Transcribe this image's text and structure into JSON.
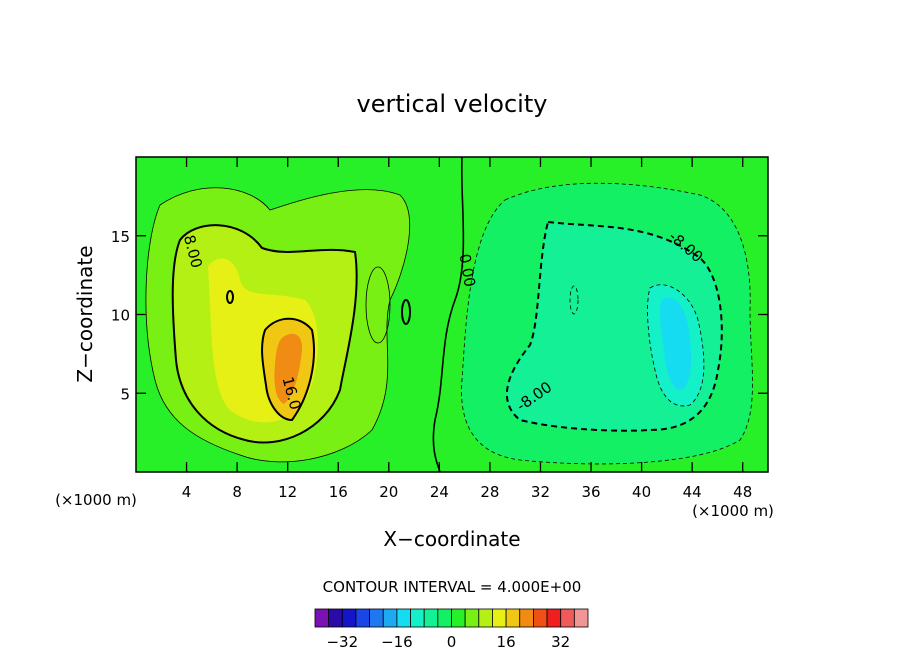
{
  "chart_data": {
    "type": "contour",
    "title": "vertical velocity",
    "xlabel": "X−coordinate",
    "ylabel": "Z−coordinate",
    "x_unit_label": "(×1000 m)",
    "z_unit_label": "(×1000 m)",
    "xlim": [
      0,
      50
    ],
    "ylim": [
      0,
      20
    ],
    "x_ticks": [
      "4",
      "8",
      "12",
      "16",
      "20",
      "24",
      "28",
      "32",
      "36",
      "40",
      "44",
      "48"
    ],
    "y_ticks": [
      "5",
      "10",
      "15"
    ],
    "contour_interval_text": "CONTOUR INTERVAL = 4.000E+00",
    "contour_labels": [
      {
        "text": "8.00",
        "x": 4.5,
        "z": 14.0
      },
      {
        "text": "16.0",
        "x": 12.3,
        "z": 5.0
      },
      {
        "text": "0.00",
        "x": 26.2,
        "z": 12.8
      },
      {
        "text": "-8.00",
        "x": 43.5,
        "z": 14.3
      },
      {
        "text": "-8.00",
        "x": 31.5,
        "z": 4.8
      }
    ],
    "colorbar": {
      "levels": [
        -40,
        -36,
        -32,
        -28,
        -24,
        -20,
        -16,
        -12,
        -8,
        -4,
        0,
        4,
        8,
        12,
        16,
        20,
        24,
        28,
        32,
        36,
        40
      ],
      "colors": [
        "#7a11b4",
        "#2a0aa8",
        "#1414c8",
        "#1a46e6",
        "#1e78f0",
        "#1eaaf0",
        "#15dcf0",
        "#14f0c8",
        "#14f096",
        "#14f064",
        "#28f028",
        "#78f014",
        "#b4f014",
        "#e6f014",
        "#f0c814",
        "#f08c14",
        "#f05014",
        "#f01e1e",
        "#f05a5a",
        "#f09696"
      ],
      "tick_labels": [
        "−32",
        "−16",
        "0",
        "16",
        "32"
      ],
      "tick_values": [
        -32,
        -16,
        0,
        16,
        32
      ]
    }
  }
}
